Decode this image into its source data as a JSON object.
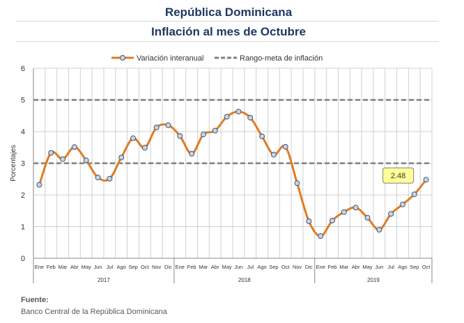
{
  "header": {
    "title": "República Dominicana",
    "subtitle": "Inflación al mes de Octubre"
  },
  "source": {
    "label": "Fuente:",
    "text": "Banco Central de la República Dominicana"
  },
  "colors": {
    "series": "#e07b24",
    "marker_fill": "#c5d4e8",
    "marker_stroke": "#44546a",
    "target": "#7f7f7f",
    "callout_fill": "#ffff99",
    "grid": "#d0d0d0"
  },
  "chart_data": {
    "type": "line",
    "ylabel": "Porcentajes",
    "ylim": [
      0,
      6
    ],
    "yticks": [
      0,
      1,
      2,
      3,
      4,
      5,
      6
    ],
    "grid": true,
    "legend_position": "top",
    "months": [
      "Ene",
      "Feb",
      "Mar",
      "Abr",
      "May",
      "Jun",
      "Jul",
      "Ago",
      "Sep",
      "Oct",
      "Nov",
      "Dic",
      "Ene",
      "Feb",
      "Mar",
      "Abr",
      "May",
      "Jun",
      "Jul",
      "Ago",
      "Sep",
      "Oct",
      "Nov",
      "Dic",
      "Ene",
      "Feb",
      "Mar",
      "Abr",
      "May",
      "Jun",
      "Jul",
      "Ago",
      "Sep",
      "Oct"
    ],
    "years": [
      {
        "label": "2017",
        "months": 12
      },
      {
        "label": "2018",
        "months": 12
      },
      {
        "label": "2019",
        "months": 10
      }
    ],
    "series": [
      {
        "name": "Variación interanual",
        "values": [
          2.32,
          3.33,
          3.13,
          3.51,
          3.09,
          2.55,
          2.51,
          3.18,
          3.79,
          3.49,
          4.13,
          4.2,
          3.86,
          3.3,
          3.91,
          4.03,
          4.47,
          4.63,
          4.44,
          3.85,
          3.27,
          3.52,
          2.37,
          1.17,
          0.7,
          1.19,
          1.46,
          1.6,
          1.28,
          0.9,
          1.4,
          1.7,
          2.02,
          2.48
        ]
      },
      {
        "name": "Rango-meta de inflación",
        "bands": [
          3,
          5
        ]
      }
    ],
    "annotation": {
      "label": "2.48",
      "index": 33
    }
  }
}
